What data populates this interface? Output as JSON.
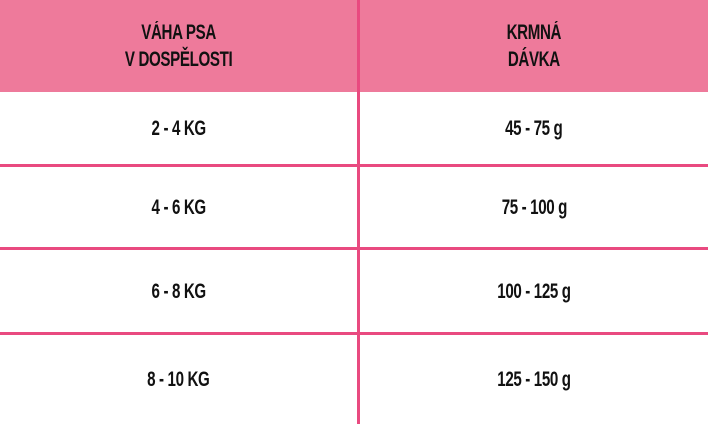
{
  "table": {
    "headers": [
      "VÁHA PSA\nV DOSPĚLOSTI",
      "KRMNÁ\nDÁVKA"
    ],
    "rows": [
      [
        "2 - 4 KG",
        "45 - 75 g"
      ],
      [
        "4 - 6 KG",
        "75 - 100 g"
      ],
      [
        "6 - 8 KG",
        "100 - 125 g"
      ],
      [
        "8 - 10 KG",
        "125 - 150 g"
      ]
    ]
  },
  "colors": {
    "header_bg": "#EE7A9B",
    "grid_lines": "#E94A80"
  }
}
